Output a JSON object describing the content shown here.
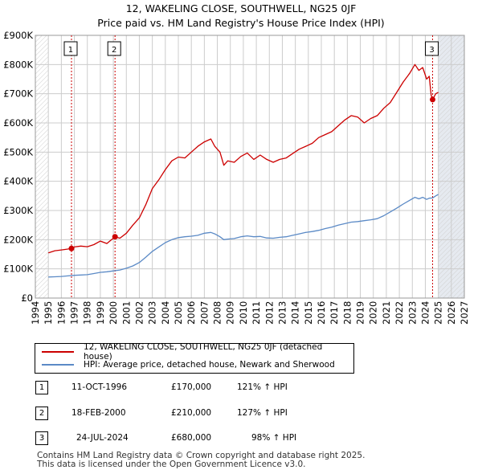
{
  "title": "12, WAKELING CLOSE, SOUTHWELL, NG25 0JF",
  "subtitle": "Price paid vs. HM Land Registry's House Price Index (HPI)",
  "colors": {
    "property": "#cc0000",
    "hpi": "#5b8ac6",
    "event_line": "#cc0000",
    "grid": "#cccccc",
    "future_shade": "#e6eaf0"
  },
  "legend": {
    "property_label": "12, WAKELING CLOSE, SOUTHWELL, NG25 0JF (detached house)",
    "hpi_label": "HPI: Average price, detached house, Newark and Sherwood"
  },
  "transactions": [
    {
      "num": "1",
      "date": "11-OCT-1996",
      "price": "£170,000",
      "hpi": "121% ↑ HPI"
    },
    {
      "num": "2",
      "date": "18-FEB-2000",
      "price": "£210,000",
      "hpi": "127% ↑ HPI"
    },
    {
      "num": "3",
      "date": "24-JUL-2024",
      "price": "£680,000",
      "hpi": "98% ↑ HPI"
    }
  ],
  "footer": {
    "line1": "Contains HM Land Registry data © Crown copyright and database right 2025.",
    "line2": "This data is licensed under the Open Government Licence v3.0."
  },
  "chart_data": {
    "type": "line",
    "title": "12, WAKELING CLOSE, SOUTHWELL, NG25 0JF",
    "subtitle": "Price paid vs. HM Land Registry's House Price Index (HPI)",
    "xlim": [
      1994,
      2027
    ],
    "ylim": [
      0,
      900000
    ],
    "x_ticks": [
      1994,
      1995,
      1996,
      1997,
      1998,
      1999,
      2000,
      2001,
      2002,
      2003,
      2004,
      2005,
      2006,
      2007,
      2008,
      2009,
      2010,
      2011,
      2012,
      2013,
      2014,
      2015,
      2016,
      2017,
      2018,
      2019,
      2020,
      2021,
      2022,
      2023,
      2024,
      2025,
      2026,
      2027
    ],
    "y_ticks": [
      {
        "value": 0,
        "label": "£0"
      },
      {
        "value": 100000,
        "label": "£100K"
      },
      {
        "value": 200000,
        "label": "£200K"
      },
      {
        "value": 300000,
        "label": "£300K"
      },
      {
        "value": 400000,
        "label": "£400K"
      },
      {
        "value": 500000,
        "label": "£500K"
      },
      {
        "value": 600000,
        "label": "£600K"
      },
      {
        "value": 700000,
        "label": "£700K"
      },
      {
        "value": 800000,
        "label": "£800K"
      },
      {
        "value": 900000,
        "label": "£900K"
      }
    ],
    "hatched_before": 1995.0,
    "hatched_after": 2025.0,
    "events": [
      {
        "label": "1",
        "x": 1996.78,
        "y": 170000
      },
      {
        "label": "2",
        "x": 2000.13,
        "y": 210000
      },
      {
        "label": "3",
        "x": 2024.56,
        "y": 680000
      }
    ],
    "series": [
      {
        "name": "12, WAKELING CLOSE, SOUTHWELL, NG25 0JF (detached house)",
        "color": "#cc0000",
        "points": [
          [
            1995.0,
            155000
          ],
          [
            1995.5,
            162000
          ],
          [
            1996.0,
            165000
          ],
          [
            1996.5,
            168000
          ],
          [
            1996.78,
            170000
          ],
          [
            1997.0,
            175000
          ],
          [
            1997.5,
            178000
          ],
          [
            1998.0,
            176000
          ],
          [
            1998.5,
            183000
          ],
          [
            1999.0,
            195000
          ],
          [
            1999.5,
            187000
          ],
          [
            2000.13,
            210000
          ],
          [
            2000.5,
            205000
          ],
          [
            2001.0,
            222000
          ],
          [
            2001.5,
            250000
          ],
          [
            2002.0,
            275000
          ],
          [
            2002.5,
            320000
          ],
          [
            2003.0,
            375000
          ],
          [
            2003.5,
            405000
          ],
          [
            2004.0,
            440000
          ],
          [
            2004.5,
            470000
          ],
          [
            2005.0,
            483000
          ],
          [
            2005.5,
            480000
          ],
          [
            2006.0,
            500000
          ],
          [
            2006.5,
            520000
          ],
          [
            2007.0,
            535000
          ],
          [
            2007.5,
            545000
          ],
          [
            2007.8,
            520000
          ],
          [
            2008.2,
            500000
          ],
          [
            2008.5,
            455000
          ],
          [
            2008.8,
            470000
          ],
          [
            2009.3,
            465000
          ],
          [
            2009.8,
            485000
          ],
          [
            2010.3,
            497000
          ],
          [
            2010.8,
            475000
          ],
          [
            2011.3,
            490000
          ],
          [
            2011.8,
            475000
          ],
          [
            2012.3,
            465000
          ],
          [
            2012.8,
            475000
          ],
          [
            2013.3,
            480000
          ],
          [
            2013.8,
            495000
          ],
          [
            2014.3,
            510000
          ],
          [
            2014.8,
            520000
          ],
          [
            2015.3,
            530000
          ],
          [
            2015.8,
            550000
          ],
          [
            2016.3,
            560000
          ],
          [
            2016.8,
            570000
          ],
          [
            2017.3,
            590000
          ],
          [
            2017.8,
            610000
          ],
          [
            2018.3,
            625000
          ],
          [
            2018.8,
            620000
          ],
          [
            2019.3,
            600000
          ],
          [
            2019.8,
            615000
          ],
          [
            2020.3,
            625000
          ],
          [
            2020.8,
            650000
          ],
          [
            2021.3,
            670000
          ],
          [
            2021.8,
            705000
          ],
          [
            2022.3,
            740000
          ],
          [
            2022.8,
            770000
          ],
          [
            2023.2,
            800000
          ],
          [
            2023.5,
            780000
          ],
          [
            2023.8,
            790000
          ],
          [
            2024.1,
            750000
          ],
          [
            2024.3,
            760000
          ],
          [
            2024.45,
            695000
          ],
          [
            2024.56,
            680000
          ],
          [
            2024.8,
            700000
          ],
          [
            2025.0,
            705000
          ]
        ]
      },
      {
        "name": "HPI: Average price, detached house, Newark and Sherwood",
        "color": "#5b8ac6",
        "points": [
          [
            1995.0,
            72000
          ],
          [
            1995.5,
            73000
          ],
          [
            1996.0,
            74000
          ],
          [
            1996.5,
            76000
          ],
          [
            1997.0,
            78000
          ],
          [
            1997.5,
            79000
          ],
          [
            1998.0,
            80000
          ],
          [
            1998.5,
            84000
          ],
          [
            1999.0,
            88000
          ],
          [
            1999.5,
            90000
          ],
          [
            2000.0,
            93000
          ],
          [
            2000.5,
            96000
          ],
          [
            2001.0,
            102000
          ],
          [
            2001.5,
            110000
          ],
          [
            2002.0,
            122000
          ],
          [
            2002.5,
            140000
          ],
          [
            2003.0,
            160000
          ],
          [
            2003.5,
            175000
          ],
          [
            2004.0,
            190000
          ],
          [
            2004.5,
            200000
          ],
          [
            2005.0,
            207000
          ],
          [
            2005.5,
            210000
          ],
          [
            2006.0,
            212000
          ],
          [
            2006.5,
            215000
          ],
          [
            2007.0,
            222000
          ],
          [
            2007.5,
            225000
          ],
          [
            2007.8,
            220000
          ],
          [
            2008.2,
            210000
          ],
          [
            2008.5,
            200000
          ],
          [
            2008.8,
            202000
          ],
          [
            2009.3,
            204000
          ],
          [
            2009.8,
            210000
          ],
          [
            2010.3,
            213000
          ],
          [
            2010.8,
            210000
          ],
          [
            2011.3,
            211000
          ],
          [
            2011.8,
            206000
          ],
          [
            2012.3,
            205000
          ],
          [
            2012.8,
            208000
          ],
          [
            2013.3,
            210000
          ],
          [
            2013.8,
            215000
          ],
          [
            2014.3,
            220000
          ],
          [
            2014.8,
            225000
          ],
          [
            2015.3,
            228000
          ],
          [
            2015.8,
            232000
          ],
          [
            2016.3,
            238000
          ],
          [
            2016.8,
            243000
          ],
          [
            2017.3,
            250000
          ],
          [
            2017.8,
            255000
          ],
          [
            2018.3,
            260000
          ],
          [
            2018.8,
            262000
          ],
          [
            2019.3,
            265000
          ],
          [
            2019.8,
            268000
          ],
          [
            2020.3,
            272000
          ],
          [
            2020.8,
            282000
          ],
          [
            2021.3,
            295000
          ],
          [
            2021.8,
            308000
          ],
          [
            2022.3,
            322000
          ],
          [
            2022.8,
            335000
          ],
          [
            2023.2,
            345000
          ],
          [
            2023.5,
            340000
          ],
          [
            2023.8,
            345000
          ],
          [
            2024.1,
            338000
          ],
          [
            2024.3,
            342000
          ],
          [
            2024.56,
            343000
          ],
          [
            2024.8,
            350000
          ],
          [
            2025.0,
            355000
          ]
        ]
      }
    ]
  }
}
